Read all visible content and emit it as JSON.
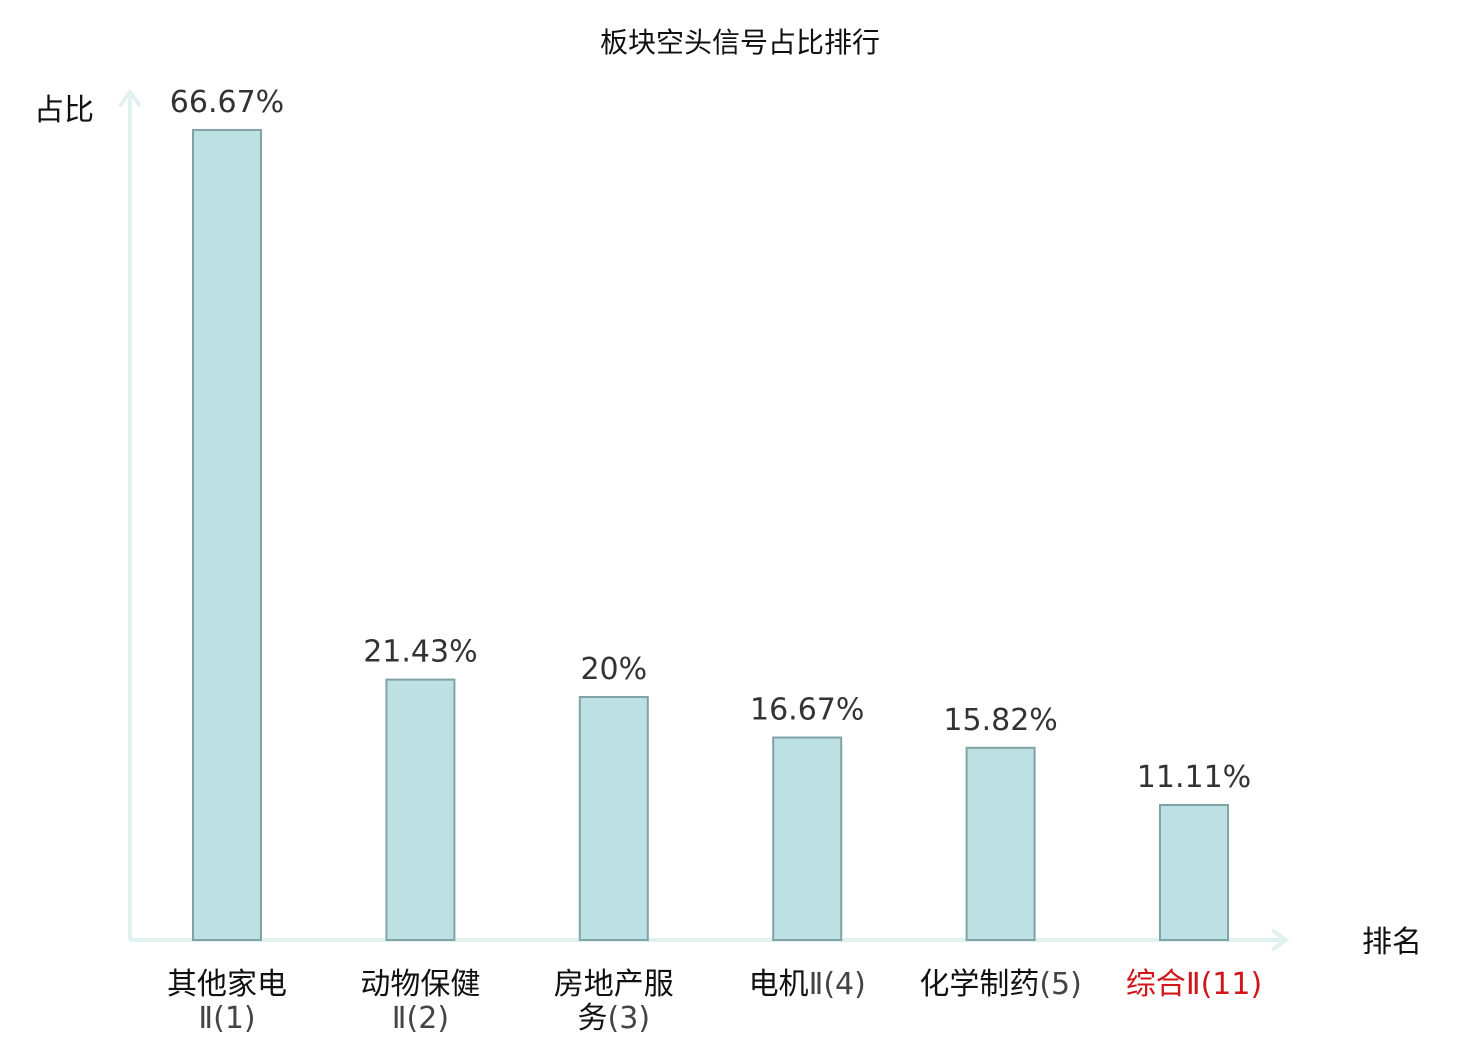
{
  "chart_data": {
    "type": "bar",
    "title": "板块空头信号占比排行",
    "ylabel": "占比",
    "xlabel": "排名",
    "ylim": [
      0,
      70
    ],
    "grid": false,
    "categories": [
      {
        "name": "其他家电",
        "name_wrap": "",
        "suffix": "Ⅱ(1)",
        "highlight": false
      },
      {
        "name": "动物保健",
        "name_wrap": "",
        "suffix": "Ⅱ(2)",
        "highlight": false
      },
      {
        "name": "房地产服",
        "name_wrap": "务",
        "suffix": "(3)",
        "highlight": false
      },
      {
        "name": "电机",
        "name_wrap": "",
        "suffix": "Ⅱ(4)",
        "highlight": false
      },
      {
        "name": "化学制药",
        "name_wrap": "",
        "suffix": "(5)",
        "highlight": false
      },
      {
        "name": "综合",
        "name_wrap": "",
        "suffix": "Ⅱ(11)",
        "highlight": true
      }
    ],
    "values": [
      66.67,
      21.43,
      20,
      16.67,
      15.82,
      11.11
    ],
    "value_labels": [
      "66.67%",
      "21.43%",
      "20%",
      "16.67%",
      "15.82%",
      "11.11%"
    ],
    "colors": {
      "bar_fill": "#bde0e3",
      "bar_stroke": "#7fa3a6",
      "axis": "#e0f2f0",
      "highlight": "#d0161b"
    }
  }
}
